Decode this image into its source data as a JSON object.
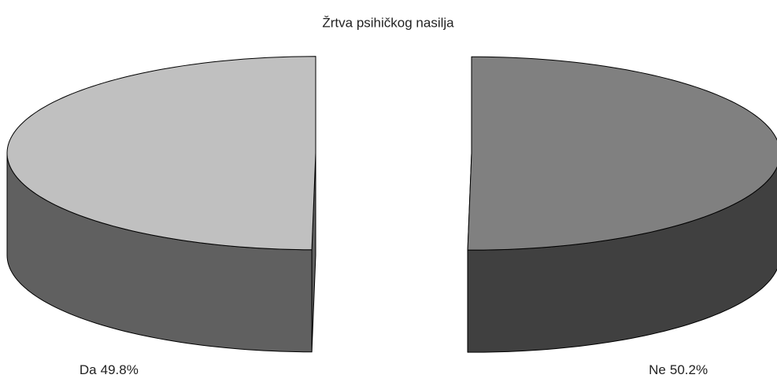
{
  "chart_data": {
    "type": "pie3d",
    "title": "Žrtva psihičkog nasilja",
    "categories": [
      "Ne",
      "Da"
    ],
    "values": [
      50.2,
      49.8
    ],
    "value_labels": [
      "50.2%",
      "49.8%"
    ],
    "colors": [
      "#808080",
      "#c0c0c0"
    ],
    "side_colors": [
      "#404040",
      "#606060"
    ]
  }
}
